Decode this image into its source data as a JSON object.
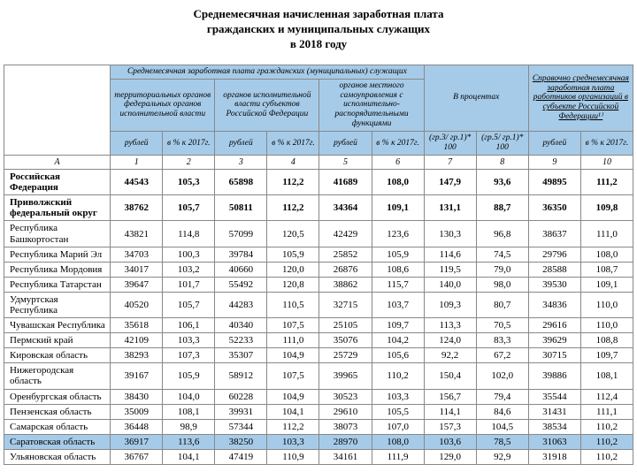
{
  "title": {
    "line1": "Среднемесячная начисленная заработная плата",
    "line2": "гражданских и муниципальных служащих",
    "line3": "в 2018 году"
  },
  "headers": {
    "group1_top": "Среднемесячная заработная плата гражданских (муниципальных) служащих",
    "group1a": "территориальных органов федеральных органов исполнительной власти",
    "group1b": "органов исполнительной власти субъектов Российской Федерации",
    "group1c": "органов местного самоуправления с исполнительно-распорядительными функциями",
    "group2_top": "В процентах",
    "group3_top": "Справочно среднемесячная заработная плата работников организаций в субъекте Российской Федерации¹⁾",
    "rub": "рублей",
    "pct": "в % к 2017г.",
    "pct_col7": "(гр.3/ гр.1)* 100",
    "pct_col8": "(гр.5/ гр.1)* 100",
    "row_a": "А"
  },
  "colnums": [
    "1",
    "2",
    "3",
    "4",
    "5",
    "6",
    "7",
    "8",
    "9",
    "10"
  ],
  "rows": [
    {
      "region": "Российская Федерация",
      "bold": true,
      "hl": false,
      "v": [
        "44543",
        "105,3",
        "65898",
        "112,2",
        "41689",
        "108,0",
        "147,9",
        "93,6",
        "49895",
        "111,2"
      ]
    },
    {
      "region": "Приволжский федеральный округ",
      "bold": true,
      "hl": false,
      "v": [
        "38762",
        "105,7",
        "50811",
        "112,2",
        "34364",
        "109,1",
        "131,1",
        "88,7",
        "36350",
        "109,8"
      ]
    },
    {
      "region": "Республика Башкортостан",
      "bold": false,
      "hl": false,
      "v": [
        "43821",
        "114,8",
        "57099",
        "120,5",
        "42429",
        "123,6",
        "130,3",
        "96,8",
        "38637",
        "111,0"
      ]
    },
    {
      "region": "Республика Марий Эл",
      "bold": false,
      "hl": false,
      "v": [
        "34703",
        "100,3",
        "39784",
        "105,9",
        "25852",
        "105,9",
        "114,6",
        "74,5",
        "29796",
        "108,0"
      ]
    },
    {
      "region": "Республика Мордовия",
      "bold": false,
      "hl": false,
      "v": [
        "34017",
        "103,2",
        "40660",
        "120,0",
        "26876",
        "108,6",
        "119,5",
        "79,0",
        "28588",
        "108,7"
      ]
    },
    {
      "region": "Республика Татарстан",
      "bold": false,
      "hl": false,
      "v": [
        "39647",
        "101,7",
        "55492",
        "120,8",
        "38862",
        "115,7",
        "140,0",
        "98,0",
        "39530",
        "109,1"
      ]
    },
    {
      "region": "Удмуртская Республика",
      "bold": false,
      "hl": false,
      "v": [
        "40520",
        "105,7",
        "44283",
        "110,5",
        "32715",
        "103,7",
        "109,3",
        "80,7",
        "34836",
        "110,0"
      ]
    },
    {
      "region": "Чувашская Республика",
      "bold": false,
      "hl": false,
      "v": [
        "35618",
        "106,1",
        "40340",
        "107,5",
        "25105",
        "109,7",
        "113,3",
        "70,5",
        "29616",
        "110,0"
      ]
    },
    {
      "region": "Пермский край",
      "bold": false,
      "hl": false,
      "v": [
        "42109",
        "103,3",
        "52233",
        "111,0",
        "35076",
        "104,2",
        "124,0",
        "83,3",
        "39629",
        "108,8"
      ]
    },
    {
      "region": "Кировская область",
      "bold": false,
      "hl": false,
      "v": [
        "38293",
        "107,3",
        "35307",
        "104,9",
        "25729",
        "105,6",
        "92,2",
        "67,2",
        "30715",
        "109,7"
      ]
    },
    {
      "region": "Нижегородская область",
      "bold": false,
      "hl": false,
      "v": [
        "39167",
        "105,9",
        "58912",
        "107,5",
        "39965",
        "110,2",
        "150,4",
        "102,0",
        "39886",
        "108,1"
      ]
    },
    {
      "region": "Оренбургская область",
      "bold": false,
      "hl": false,
      "v": [
        "38430",
        "104,0",
        "60228",
        "104,9",
        "30523",
        "103,3",
        "156,7",
        "79,4",
        "35544",
        "112,4"
      ]
    },
    {
      "region": "Пензенская область",
      "bold": false,
      "hl": false,
      "v": [
        "35009",
        "108,1",
        "39931",
        "104,1",
        "29610",
        "105,5",
        "114,1",
        "84,6",
        "31431",
        "111,1"
      ]
    },
    {
      "region": "Самарская область",
      "bold": false,
      "hl": false,
      "v": [
        "36448",
        "98,9",
        "57344",
        "112,2",
        "38073",
        "107,0",
        "157,3",
        "104,5",
        "38534",
        "110,2"
      ]
    },
    {
      "region": "Саратовская область",
      "bold": false,
      "hl": true,
      "v": [
        "36917",
        "113,6",
        "38250",
        "103,3",
        "28970",
        "108,0",
        "103,6",
        "78,5",
        "31063",
        "110,2"
      ]
    },
    {
      "region": "Ульяновская область",
      "bold": false,
      "hl": false,
      "v": [
        "36767",
        "104,1",
        "47419",
        "110,9",
        "34161",
        "111,9",
        "129,0",
        "92,9",
        "31918",
        "110,2"
      ]
    }
  ],
  "style": {
    "header_bg": "#a6cbe8",
    "highlight_bg": "#a6cbe8",
    "border": "#888888"
  }
}
